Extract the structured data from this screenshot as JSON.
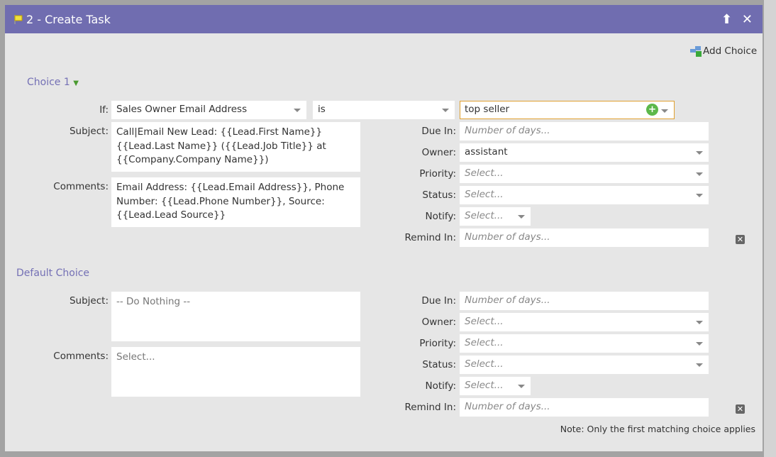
{
  "header": {
    "title": "2 - Create Task"
  },
  "add_choice": "Add Choice",
  "labels": {
    "if": "If:",
    "subject": "Subject:",
    "comments": "Comments:",
    "due_in": "Due In:",
    "owner": "Owner:",
    "priority": "Priority:",
    "status": "Status:",
    "notify": "Notify:",
    "remind_in": "Remind In:"
  },
  "choice1": {
    "title": "Choice 1",
    "field": "Sales Owner Email Address",
    "operator": "is",
    "value": "top seller",
    "subject": "Call|Email New Lead: {{Lead.First Name}}\n{{Lead.Last Name}} ({{Lead.Job Title}} at\n{{Company.Company Name}})",
    "comments": "Email Address: {{Lead.Email Address}}, Phone\nNumber: {{Lead.Phone Number}}, Source:\n{{Lead.Lead Source}}",
    "due_in_placeholder": "Number of days...",
    "owner": "assistant",
    "priority": "Select...",
    "status": "Select...",
    "notify": "Select...",
    "remind_in_placeholder": "Number of days..."
  },
  "default": {
    "title": "Default Choice",
    "subject": "-- Do Nothing --",
    "comments": "Select...",
    "due_in_placeholder": "Number of days...",
    "owner": "Select...",
    "priority": "Select...",
    "status": "Select...",
    "notify": "Select...",
    "remind_in_placeholder": "Number of days..."
  },
  "note": "Note: Only the first matching choice applies",
  "colors": {
    "header": "#706db0",
    "accent": "#7470b5",
    "highlight_border": "#e0a030"
  }
}
